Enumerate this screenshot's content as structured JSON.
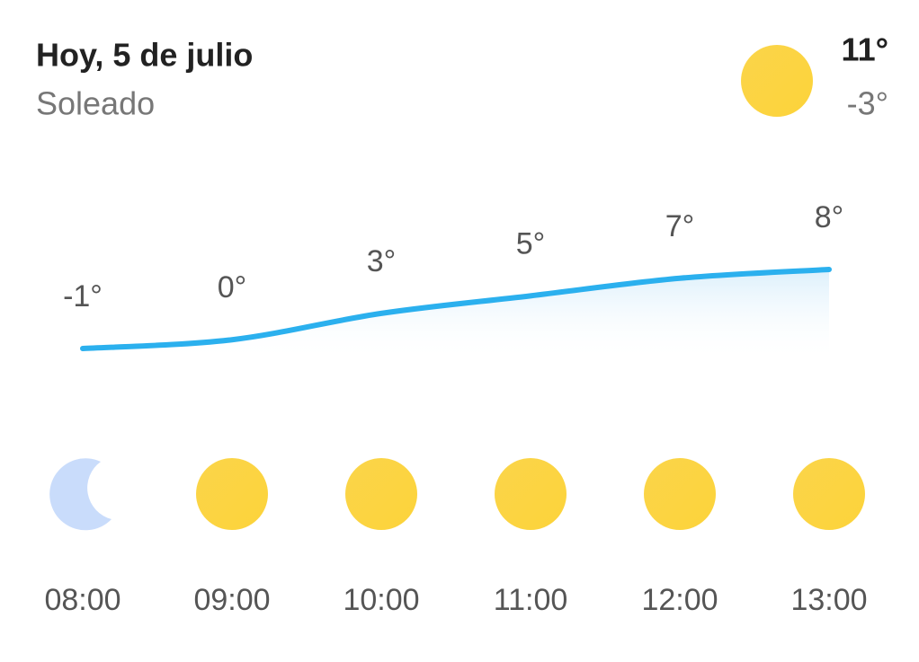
{
  "header": {
    "title": "Hoy, 5 de julio",
    "condition": "Soleado",
    "high": "11°",
    "low": "-3°"
  },
  "chart_data": {
    "type": "line",
    "categories": [
      "08:00",
      "09:00",
      "10:00",
      "11:00",
      "12:00",
      "13:00"
    ],
    "values": [
      -1,
      0,
      3,
      5,
      7,
      8
    ],
    "value_labels": [
      "-1°",
      "0°",
      "3°",
      "5°",
      "7°",
      "8°"
    ],
    "color": "#2bb0ee"
  }
}
